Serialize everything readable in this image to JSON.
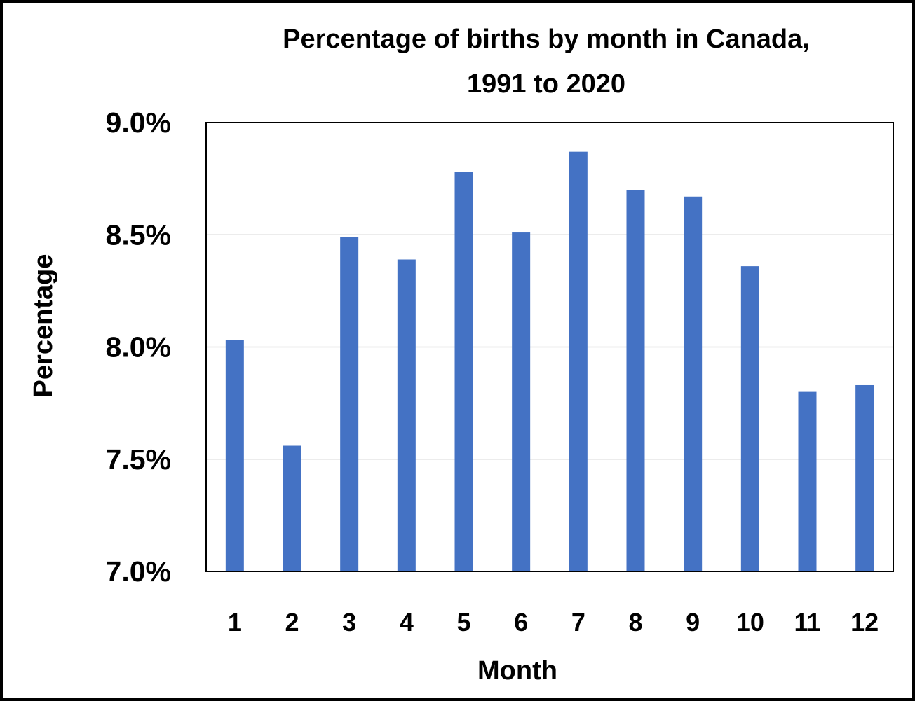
{
  "chart_data": {
    "type": "bar",
    "title_line1": "Percentage of births by month in Canada,",
    "title_line2": "1991 to 2020",
    "xlabel": "Month",
    "ylabel": "Percentage",
    "categories": [
      "1",
      "2",
      "3",
      "4",
      "5",
      "6",
      "7",
      "8",
      "9",
      "10",
      "11",
      "12"
    ],
    "values": [
      8.03,
      7.56,
      8.49,
      8.39,
      8.78,
      8.51,
      8.87,
      8.7,
      8.67,
      8.36,
      7.8,
      7.83
    ],
    "value_unit": "%",
    "ylim": [
      7.0,
      9.0
    ],
    "yticks": [
      7.0,
      7.5,
      8.0,
      8.5,
      9.0
    ],
    "ytick_labels": [
      "7.0%",
      "7.5%",
      "8.0%",
      "8.5%",
      "9.0%"
    ],
    "grid": "horizontal",
    "legend": "none",
    "bar_color": "#4472C4",
    "grid_color": "#D9D9D9"
  }
}
